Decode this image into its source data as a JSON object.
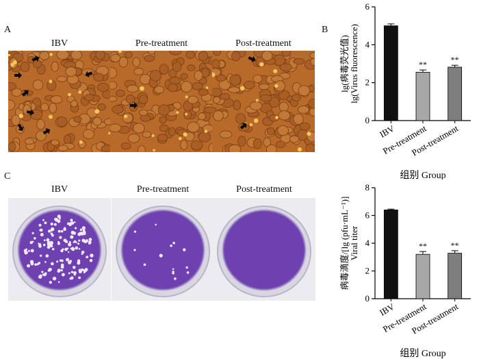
{
  "figure": {
    "panel_a": {
      "letter": "A",
      "labels": [
        "IBV",
        "Pre-treatment",
        "Post-treatment"
      ]
    },
    "panel_b": {
      "letter": "B"
    },
    "panel_c": {
      "letter": "C",
      "labels": [
        "IBV",
        "Pre-treatment",
        "Post-treatment"
      ]
    },
    "colors": {
      "cells_bg": "#b86a2a",
      "plate_purple": "#6f41b0",
      "bar_black": "#111111",
      "bar_light_gray": "#a7a7a7",
      "bar_mid_gray": "#7e7e7e"
    },
    "icons": [
      "arrow-marker-icon"
    ]
  },
  "chart_data": [
    {
      "type": "bar",
      "categories": [
        "IBV",
        "Pre-treatment",
        "Post-treatment"
      ],
      "values": [
        5.0,
        2.55,
        2.82
      ],
      "errors": [
        0.1,
        0.12,
        0.1
      ],
      "significance": [
        "",
        "**",
        "**"
      ],
      "ylabel_lines": [
        "lg(病毒荧光值)",
        "lg(Virus fluorescence)"
      ],
      "xlabel": "组别 Group",
      "ylim": [
        0,
        6
      ],
      "yticks": [
        "0",
        "2",
        "4",
        "6"
      ],
      "bar_colors": [
        "#111111",
        "#a7a7a7",
        "#7e7e7e"
      ]
    },
    {
      "type": "bar",
      "categories": [
        "IBV",
        "Pre-treatment",
        "Post-treatment"
      ],
      "values": [
        6.4,
        3.2,
        3.28
      ],
      "errors": [
        0.06,
        0.2,
        0.18
      ],
      "significance": [
        "",
        "**",
        "**"
      ],
      "ylabel_lines": [
        "病毒滴度/[lg (pfu·mL⁻¹)]",
        "Viral titer"
      ],
      "xlabel": "组别 Group",
      "ylim": [
        0,
        8
      ],
      "yticks": [
        "0",
        "2",
        "4",
        "6",
        "8"
      ],
      "bar_colors": [
        "#111111",
        "#a7a7a7",
        "#7e7e7e"
      ]
    }
  ]
}
